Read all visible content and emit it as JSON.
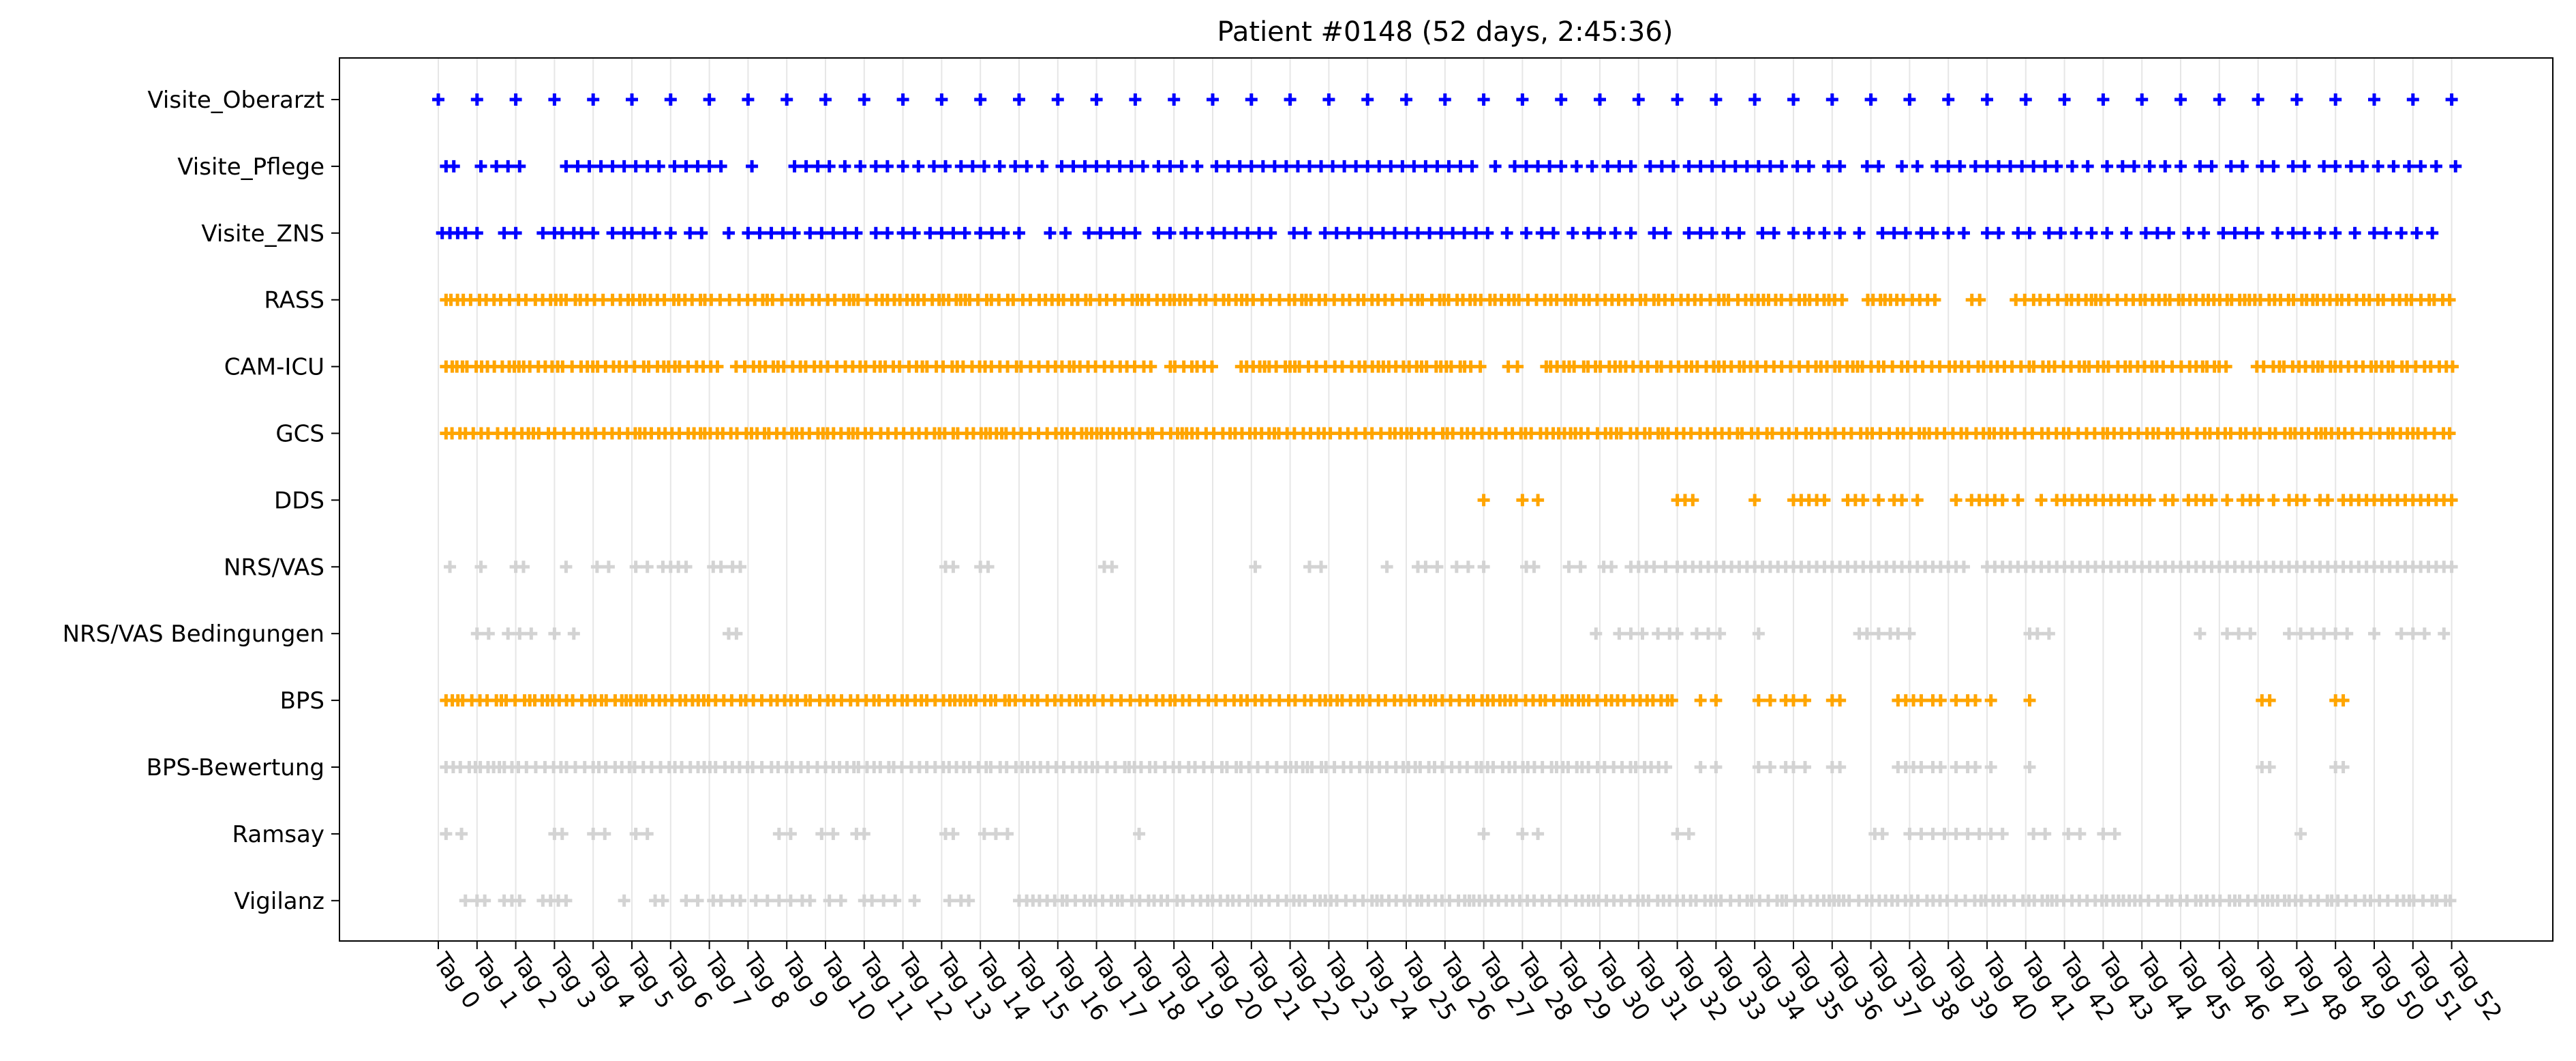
{
  "chart_data": {
    "type": "scatter",
    "title": "Patient #0148 (52 days, 2:45:36)",
    "xlabel": "",
    "ylabel": "",
    "x_tick_labels": [
      "Tag 0",
      "Tag 1",
      "Tag 2",
      "Tag 3",
      "Tag 4",
      "Tag 5",
      "Tag 6",
      "Tag 7",
      "Tag 8",
      "Tag 9",
      "Tag 10",
      "Tag 11",
      "Tag 12",
      "Tag 13",
      "Tag 14",
      "Tag 15",
      "Tag 16",
      "Tag 17",
      "Tag 18",
      "Tag 19",
      "Tag 20",
      "Tag 21",
      "Tag 22",
      "Tag 23",
      "Tag 24",
      "Tag 25",
      "Tag 26",
      "Tag 27",
      "Tag 28",
      "Tag 29",
      "Tag 30",
      "Tag 31",
      "Tag 32",
      "Tag 33",
      "Tag 34",
      "Tag 35",
      "Tag 36",
      "Tag 37",
      "Tag 38",
      "Tag 39",
      "Tag 40",
      "Tag 41",
      "Tag 42",
      "Tag 43",
      "Tag 44",
      "Tag 45",
      "Tag 46",
      "Tag 47",
      "Tag 48",
      "Tag 49",
      "Tag 50",
      "Tag 51",
      "Tag 52"
    ],
    "xlim": [
      -2.6,
      55.7
    ],
    "grid": "vertical",
    "marker": "plus",
    "colors": {
      "blue": "#0000ff",
      "orange": "#ffa500",
      "gray": "#d3d3d3"
    },
    "series": [
      {
        "name": "Visite_Oberarzt",
        "color": "#0000ff",
        "x": [
          0,
          1,
          2,
          3,
          4,
          5,
          6,
          7,
          8,
          9,
          10,
          11,
          12,
          13,
          14,
          15,
          16,
          17,
          18,
          19,
          20,
          21,
          22,
          23,
          24,
          25,
          26,
          27,
          28,
          29,
          30,
          31,
          32,
          33,
          34,
          35,
          36,
          37,
          38,
          39,
          40,
          41,
          42,
          43,
          44,
          45,
          46,
          47,
          48,
          49,
          50,
          51,
          52
        ]
      },
      {
        "name": "Visite_Pflege",
        "color": "#0000ff",
        "x": [
          0.2,
          0.4,
          1.1,
          1.5,
          1.8,
          2.1,
          3.3,
          3.6,
          3.9,
          4.2,
          4.5,
          4.8,
          5.1,
          5.4,
          5.7,
          6.1,
          6.4,
          6.7,
          7,
          7.3,
          8.1,
          9.2,
          9.5,
          9.8,
          10.1,
          10.5,
          10.9,
          11.3,
          11.6,
          12,
          12.4,
          12.8,
          13.1,
          13.5,
          13.8,
          14.1,
          14.5,
          14.9,
          15.2,
          15.6,
          16.1,
          16.4,
          16.7,
          17,
          17.3,
          17.6,
          17.9,
          18.2,
          18.6,
          18.9,
          19.2,
          19.6,
          20.1,
          20.4,
          20.7,
          21,
          21.3,
          21.6,
          21.9,
          22.2,
          22.5,
          22.8,
          23.1,
          23.4,
          23.7,
          24,
          24.3,
          24.6,
          24.9,
          25.2,
          25.5,
          25.8,
          26.1,
          26.4,
          26.7,
          27.3,
          27.8,
          28.1,
          28.4,
          28.7,
          29,
          29.4,
          29.8,
          30.2,
          30.5,
          30.8,
          31.3,
          31.6,
          31.9,
          32.3,
          32.6,
          32.9,
          33.2,
          33.5,
          33.8,
          34.1,
          34.4,
          34.7,
          35.1,
          35.4,
          35.9,
          36.2,
          36.9,
          37.2,
          37.8,
          38.2,
          38.7,
          39,
          39.3,
          39.7,
          40,
          40.3,
          40.6,
          40.9,
          41.2,
          41.5,
          41.8,
          42.2,
          42.6,
          43.1,
          43.5,
          43.8,
          44.2,
          44.6,
          45,
          45.5,
          45.8,
          46.3,
          46.6,
          47.1,
          47.4,
          47.9,
          48.2,
          48.7,
          49,
          49.4,
          49.7,
          50.1,
          50.5,
          50.9,
          51.2,
          51.6,
          52.1
        ]
      },
      {
        "name": "Visite_ZNS",
        "color": "#0000ff",
        "x": [
          0.1,
          0.3,
          0.5,
          0.7,
          1.0,
          1.7,
          2.0,
          2.7,
          3.0,
          3.2,
          3.5,
          3.7,
          4.0,
          4.5,
          4.8,
          5.0,
          5.3,
          5.6,
          6.0,
          6.5,
          6.8,
          7.5,
          8.0,
          8.3,
          8.6,
          8.9,
          9.2,
          9.6,
          9.9,
          10.2,
          10.5,
          10.8,
          11.3,
          11.6,
          12,
          12.3,
          12.7,
          13.0,
          13.3,
          13.6,
          14.0,
          14.3,
          14.6,
          15,
          15.8,
          16.2,
          16.8,
          17.1,
          17.4,
          17.7,
          18,
          18.6,
          18.9,
          19.3,
          19.6,
          20,
          20.3,
          20.6,
          20.9,
          21.2,
          21.5,
          22.1,
          22.4,
          22.9,
          23.2,
          23.5,
          23.8,
          24.1,
          24.4,
          24.7,
          25,
          25.3,
          25.6,
          25.9,
          26.2,
          26.5,
          26.8,
          27.1,
          27.6,
          28.1,
          28.5,
          28.8,
          29.3,
          29.7,
          30,
          30.4,
          30.8,
          31.4,
          31.7,
          32.3,
          32.6,
          32.9,
          33.3,
          33.6,
          34.2,
          34.5,
          35,
          35.4,
          35.8,
          36.2,
          36.7,
          37.3,
          37.6,
          37.9,
          38.3,
          38.6,
          39,
          39.4,
          40,
          40.3,
          40.8,
          41.1,
          41.6,
          41.9,
          42.3,
          42.7,
          43.1,
          43.6,
          44.1,
          44.4,
          44.7,
          45.2,
          45.6,
          46.1,
          46.4,
          46.7,
          47,
          47.5,
          47.9,
          48.2,
          48.6,
          49,
          49.5,
          50,
          50.3,
          50.7,
          51.1,
          51.5
        ]
      },
      {
        "name": "RASS",
        "color": "#ffa500",
        "dense": true,
        "color_gaps": [],
        "gaps": [
          [
            36.3,
            36.9
          ],
          [
            38.8,
            39.5
          ],
          [
            39.9,
            40.7
          ]
        ]
      },
      {
        "name": "CAM-ICU",
        "color": "#ffa500",
        "dense": true,
        "gaps": [
          [
            7.3,
            7.6
          ],
          [
            18.5,
            18.9
          ],
          [
            20.0,
            20.7
          ],
          [
            27.0,
            27.5
          ],
          [
            28.0,
            28.5
          ],
          [
            46.2,
            46.8
          ]
        ]
      },
      {
        "name": "GCS",
        "color": "#ffa500",
        "dense": true,
        "gaps": []
      },
      {
        "name": "DDS",
        "color": "#ffa500",
        "x": [
          27.0,
          28.0,
          28.4,
          32.0,
          32.2,
          32.4,
          34.0,
          35.0,
          35.2,
          35.4,
          35.6,
          35.8,
          36.4,
          36.6,
          36.8,
          37.2,
          37.6,
          37.8,
          38.2,
          39.2,
          39.6,
          39.8,
          40.0,
          40.2,
          40.4,
          40.8,
          41.4,
          41.8,
          42.0,
          42.2,
          42.4,
          42.6,
          42.8,
          43.0,
          43.2,
          43.4,
          43.6,
          43.8,
          44.0,
          44.2,
          44.6,
          44.8,
          45.2,
          45.4,
          45.6,
          45.8,
          46.2,
          46.6,
          46.8,
          47.0,
          47.4,
          47.8,
          48.0,
          48.2,
          48.6,
          48.8,
          49.2,
          49.4,
          49.6,
          49.8,
          50.0,
          50.2,
          50.4,
          50.6,
          50.8,
          51.0,
          51.2,
          51.4,
          51.6,
          51.8,
          52.0
        ]
      },
      {
        "name": "NRS/VAS",
        "color": "#d3d3d3",
        "x": [
          0.3,
          1.1,
          2.0,
          2.2,
          3.3,
          4.1,
          4.4,
          5.1,
          5.4,
          5.8,
          6.0,
          6.2,
          6.4,
          7.1,
          7.3,
          7.6,
          7.8,
          13.1,
          13.3,
          14.0,
          14.2,
          17.2,
          17.4,
          21.1,
          22.5,
          22.8,
          24.5,
          25.3,
          25.5,
          25.8,
          26.3,
          26.6,
          27.0,
          28.1,
          28.3,
          29.2,
          29.5,
          30.1,
          30.3,
          30.8,
          31.0,
          31.2,
          31.4,
          31.7,
          32.0,
          32.2,
          32.4,
          32.6,
          32.8,
          33.0,
          33.2,
          33.4,
          33.6,
          33.8,
          34.0,
          34.2,
          34.4,
          34.6,
          34.8,
          35.0,
          35.2,
          35.4,
          35.6,
          35.8,
          36.0,
          36.2,
          36.4,
          36.6,
          36.8,
          37.0,
          37.2,
          37.4,
          37.6,
          37.8,
          38.0,
          38.2,
          38.4,
          38.6,
          38.8,
          39.0,
          39.2,
          39.4,
          40.0,
          40.2,
          40.4,
          40.6,
          40.8,
          41.0,
          41.2,
          41.4,
          41.6,
          41.8,
          42.0,
          42.2,
          42.4,
          42.6,
          42.8,
          43.0,
          43.2,
          43.4,
          43.6,
          43.8,
          44.0,
          44.2,
          44.4,
          44.6,
          44.8,
          45.0,
          45.2,
          45.4,
          45.6,
          45.8,
          46.0,
          46.2,
          46.4,
          46.6,
          46.8,
          47.0,
          47.2,
          47.4,
          47.6,
          47.8,
          48.0,
          48.2,
          48.4,
          48.6,
          48.8,
          49.0,
          49.2,
          49.4,
          49.6,
          49.8,
          50.0,
          50.2,
          50.4,
          50.6,
          50.8,
          51.0,
          51.2,
          51.4,
          51.6,
          51.8,
          52.0
        ]
      },
      {
        "name": "NRS/VAS Bedingungen",
        "color": "#d3d3d3",
        "x": [
          1.0,
          1.3,
          1.8,
          2.1,
          2.4,
          3.0,
          3.5,
          7.5,
          7.7,
          29.9,
          30.5,
          30.8,
          31.1,
          31.5,
          31.8,
          32.0,
          32.5,
          32.8,
          33.1,
          34.1,
          36.7,
          36.9,
          37.2,
          37.5,
          37.7,
          38.0,
          41.1,
          41.3,
          41.6,
          45.5,
          46.2,
          46.5,
          46.8,
          47.8,
          48.1,
          48.4,
          48.7,
          49.0,
          49.3,
          50.0,
          50.7,
          51.0,
          51.3,
          51.8
        ]
      },
      {
        "name": "BPS",
        "color": "#ffa500",
        "dense": true,
        "range": [
          0.2,
          31.9
        ],
        "x_extra": [
          32.6,
          33.0,
          34.1,
          34.4,
          34.8,
          35.0,
          35.3,
          36.0,
          36.2,
          37.7,
          37.9,
          38.1,
          38.3,
          38.6,
          38.8,
          39.2,
          39.5,
          39.7,
          40.1,
          41.1,
          47.1,
          47.3,
          49.0,
          49.2
        ]
      },
      {
        "name": "BPS-Bewertung",
        "color": "#d3d3d3",
        "dense": true,
        "range": [
          0.2,
          31.9
        ],
        "x_extra": [
          32.6,
          33.0,
          34.1,
          34.4,
          34.8,
          35.0,
          35.3,
          36.0,
          36.2,
          37.7,
          37.9,
          38.1,
          38.3,
          38.6,
          38.8,
          39.2,
          39.5,
          39.7,
          40.1,
          41.1,
          47.1,
          47.3,
          49.0,
          49.2
        ]
      },
      {
        "name": "Ramsay",
        "color": "#d3d3d3",
        "x": [
          0.2,
          0.6,
          3.0,
          3.2,
          4.0,
          4.3,
          5.1,
          5.4,
          8.8,
          9.1,
          9.9,
          10.2,
          10.8,
          11.0,
          13.1,
          13.3,
          14.1,
          14.4,
          14.7,
          18.1,
          27.0,
          28.0,
          28.4,
          32.0,
          32.3,
          37.1,
          37.3,
          38.0,
          38.3,
          38.6,
          38.9,
          39.2,
          39.5,
          39.8,
          40.1,
          40.4,
          41.2,
          41.5,
          42.1,
          42.4,
          43.0,
          43.3,
          48.1
        ]
      },
      {
        "name": "Vigilanz",
        "color": "#d3d3d3",
        "dense": true,
        "x_extra": [
          0.7,
          1.0,
          1.2,
          1.7,
          1.9,
          2.1,
          2.7,
          2.9,
          3.1,
          3.3,
          4.8,
          5.6,
          5.8,
          6.4,
          6.7,
          7.1,
          7.3,
          7.6,
          7.8,
          8.2,
          8.5,
          8.8,
          9.1,
          9.4,
          9.6,
          10.1,
          10.4,
          11.0,
          11.2,
          11.5,
          11.8,
          12.3,
          13.2,
          13.5,
          13.7
        ],
        "range": [
          15.0,
          52.0
        ]
      }
    ]
  }
}
